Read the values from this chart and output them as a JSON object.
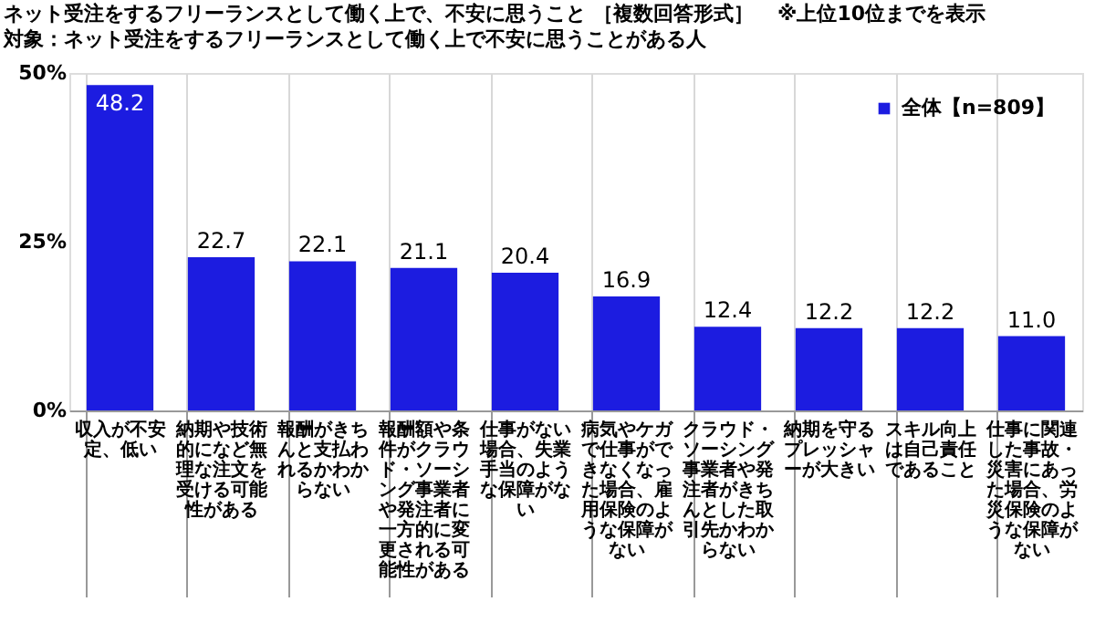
{
  "chart_data": {
    "type": "bar",
    "title": "ネット受注をするフリーランスとして働く上で、不安に思うこと ［複数回答形式］",
    "subtitle": "対象：ネット受注をするフリーランスとして働く上で不安に思うことがある人",
    "annotations": [
      "※上位10位までを表示"
    ],
    "categories": [
      "収入が不安定、低い",
      "納期や技術的になど無理な注文を受ける可能性がある",
      "報酬がきちんと支払われるかわからない",
      "報酬額や条件がクラウド・ソーシング事業者や発注者に一方的に変更される可能性がある",
      "仕事がない場合、失業手当のような保障がない",
      "病気やケガで仕事ができなくなった場合、雇用保険のような保障がない",
      "クラウド・ソーシング事業者や発注者がきちんとした取引先かわからない",
      "納期を守るプレッシャーが大きい",
      "スキル向上は自己責任であること",
      "仕事に関連した事故・災害にあった場合、労災保険のような保障がない"
    ],
    "series": [
      {
        "name": "全体【n=809】",
        "color": "#1c1ce0",
        "values": [
          48.2,
          22.7,
          22.1,
          21.1,
          20.4,
          16.9,
          12.4,
          12.2,
          12.2,
          11.0
        ],
        "value_labels": [
          "48.2",
          "22.7",
          "22.1",
          "21.1",
          "20.4",
          "16.9",
          "12.4",
          "12.2",
          "12.2",
          "11.0"
        ]
      }
    ],
    "ylim": [
      0,
      50
    ],
    "yticks": [
      {
        "value": 0,
        "label": "0%"
      },
      {
        "value": 25,
        "label": "25%"
      },
      {
        "value": 50,
        "label": "50%"
      }
    ],
    "grid": "x",
    "legend": "top right"
  }
}
